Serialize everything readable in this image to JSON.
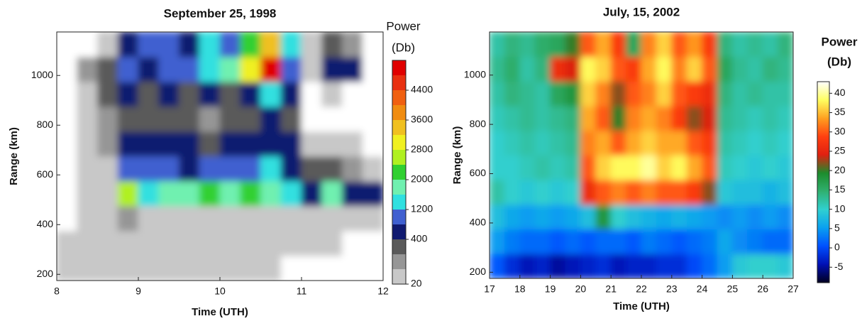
{
  "chart_data": [
    {
      "type": "heatmap",
      "title": "September 25, 1998",
      "xlabel": "Time (UTH)",
      "ylabel": "Range (km)",
      "x": [
        8.125,
        8.375,
        8.625,
        8.875,
        9.125,
        9.375,
        9.625,
        9.875,
        10.125,
        10.375,
        10.625,
        10.875,
        11.125,
        11.375,
        11.625,
        11.875
      ],
      "y": [
        225,
        325,
        425,
        525,
        625,
        725,
        825,
        925,
        1025,
        1125
      ],
      "z": [
        [
          40,
          30,
          40,
          30,
          20,
          30,
          20,
          30,
          40,
          20,
          20,
          10,
          0,
          0,
          0,
          0
        ],
        [
          60,
          40,
          30,
          20,
          60,
          30,
          50,
          30,
          40,
          60,
          30,
          20,
          30,
          20,
          10,
          0
        ],
        [
          0,
          40,
          60,
          100,
          80,
          80,
          90,
          90,
          80,
          80,
          80,
          60,
          40,
          40,
          40,
          30
        ],
        [
          0,
          30,
          80,
          2700,
          1300,
          1700,
          1800,
          2300,
          1900,
          2200,
          1900,
          1400,
          700,
          1600,
          500,
          400
        ],
        [
          0,
          20,
          60,
          1000,
          900,
          800,
          700,
          800,
          800,
          850,
          1200,
          600,
          300,
          250,
          120,
          60
        ],
        [
          0,
          30,
          100,
          500,
          400,
          450,
          400,
          380,
          400,
          420,
          700,
          450,
          40,
          20,
          30,
          0
        ],
        [
          0,
          50,
          150,
          300,
          200,
          250,
          200,
          180,
          200,
          300,
          600,
          300,
          0,
          0,
          0,
          0
        ],
        [
          0,
          80,
          200,
          500,
          300,
          400,
          300,
          400,
          300,
          500,
          1200,
          400,
          0,
          30,
          0,
          0
        ],
        [
          0,
          100,
          300,
          800,
          600,
          1000,
          800,
          1200,
          1800,
          3000,
          4800,
          1000,
          50,
          400,
          600,
          0
        ],
        [
          0,
          0,
          80,
          600,
          800,
          900,
          700,
          1500,
          1000,
          2000,
          3200,
          1200,
          60,
          200,
          100,
          0
        ]
      ],
      "xlim": [
        8,
        12
      ],
      "ylim": [
        175,
        1175
      ],
      "xticks": [
        8,
        9,
        10,
        11,
        12
      ],
      "yticks": [
        200,
        400,
        600,
        800,
        1000
      ],
      "colorbar": {
        "title": [
          "Power",
          "(Db)"
        ],
        "scale": "levels",
        "levels": [
          20,
          100,
          200,
          400,
          800,
          1200,
          1600,
          2000,
          2400,
          2800,
          3200,
          3600,
          4000,
          4400,
          4800,
          5200
        ],
        "colors": [
          "#c8c8c8",
          "#969696",
          "#5a5a5a",
          "#101a70",
          "#4060d0",
          "#30e0e0",
          "#70f0b0",
          "#30d030",
          "#b0f020",
          "#f0f020",
          "#f0c020",
          "#f08c10",
          "#f06010",
          "#e83010",
          "#e00000"
        ],
        "ticks": [
          20,
          400,
          1200,
          2000,
          2800,
          3600,
          4400
        ]
      }
    },
    {
      "type": "heatmap",
      "title": "July, 15, 2002",
      "xlabel": "Time (UTH)",
      "ylabel": "Range (km)",
      "x": [
        17.25,
        17.75,
        18.25,
        18.75,
        19.25,
        19.75,
        20.25,
        20.75,
        21.25,
        21.75,
        22.25,
        22.75,
        23.25,
        23.75,
        24.25,
        24.75,
        25.25,
        25.75,
        26.25,
        26.75
      ],
      "y": [
        225,
        325,
        425,
        525,
        625,
        725,
        825,
        925,
        1025,
        1125
      ],
      "z": [
        [
          1,
          -2,
          -4,
          -3,
          -5,
          -4,
          -3,
          -2,
          -4,
          -3,
          -3,
          -2,
          -2,
          0,
          2,
          5,
          9,
          10,
          10,
          9
        ],
        [
          5,
          3,
          2,
          2,
          1,
          2,
          1,
          2,
          2,
          1,
          3,
          2,
          1,
          2,
          3,
          6,
          4,
          3,
          2,
          2
        ],
        [
          8,
          6,
          5,
          6,
          5,
          6,
          8,
          18,
          10,
          8,
          7,
          6,
          7,
          6,
          5,
          4,
          5,
          4,
          5,
          4
        ],
        [
          12,
          10,
          9,
          10,
          9,
          10,
          26,
          30,
          32,
          30,
          32,
          30,
          30,
          28,
          22,
          9,
          8,
          8,
          7,
          8
        ],
        [
          10,
          10,
          11,
          12,
          11,
          12,
          30,
          36,
          38,
          38,
          40,
          36,
          38,
          34,
          30,
          11,
          10,
          9,
          10,
          9
        ],
        [
          10,
          11,
          12,
          11,
          12,
          13,
          32,
          34,
          30,
          34,
          36,
          34,
          34,
          30,
          28,
          12,
          11,
          10,
          11,
          10
        ],
        [
          11,
          12,
          13,
          12,
          13,
          14,
          34,
          30,
          20,
          32,
          34,
          32,
          28,
          22,
          24,
          13,
          12,
          11,
          12,
          11
        ],
        [
          12,
          14,
          13,
          12,
          16,
          18,
          36,
          32,
          22,
          30,
          32,
          36,
          30,
          28,
          26,
          14,
          12,
          13,
          12,
          12
        ],
        [
          13,
          15,
          12,
          14,
          26,
          24,
          38,
          36,
          30,
          28,
          34,
          38,
          32,
          36,
          30,
          16,
          13,
          12,
          14,
          13
        ],
        [
          12,
          14,
          13,
          15,
          16,
          20,
          30,
          34,
          28,
          16,
          32,
          36,
          30,
          33,
          28,
          14,
          12,
          13,
          12,
          14
        ]
      ],
      "xlim": [
        17,
        27
      ],
      "ylim": [
        175,
        1175
      ],
      "xticks": [
        17,
        18,
        19,
        20,
        21,
        22,
        23,
        24,
        25,
        26,
        27
      ],
      "yticks": [
        200,
        400,
        600,
        800,
        1000
      ],
      "colorbar": {
        "title": [
          "Power",
          "(Db)"
        ],
        "scale": "linear",
        "zlim": [
          -9,
          43
        ],
        "colors": [
          "#00001e",
          "#0010b4",
          "#0050ff",
          "#0aa0f0",
          "#30d0d0",
          "#30b070",
          "#1c8c2c",
          "#e02010",
          "#ff4010",
          "#ffa020",
          "#ffff60",
          "#ffffff"
        ],
        "ticks": [
          -5,
          0,
          5,
          10,
          15,
          20,
          25,
          30,
          35,
          40
        ]
      }
    }
  ]
}
